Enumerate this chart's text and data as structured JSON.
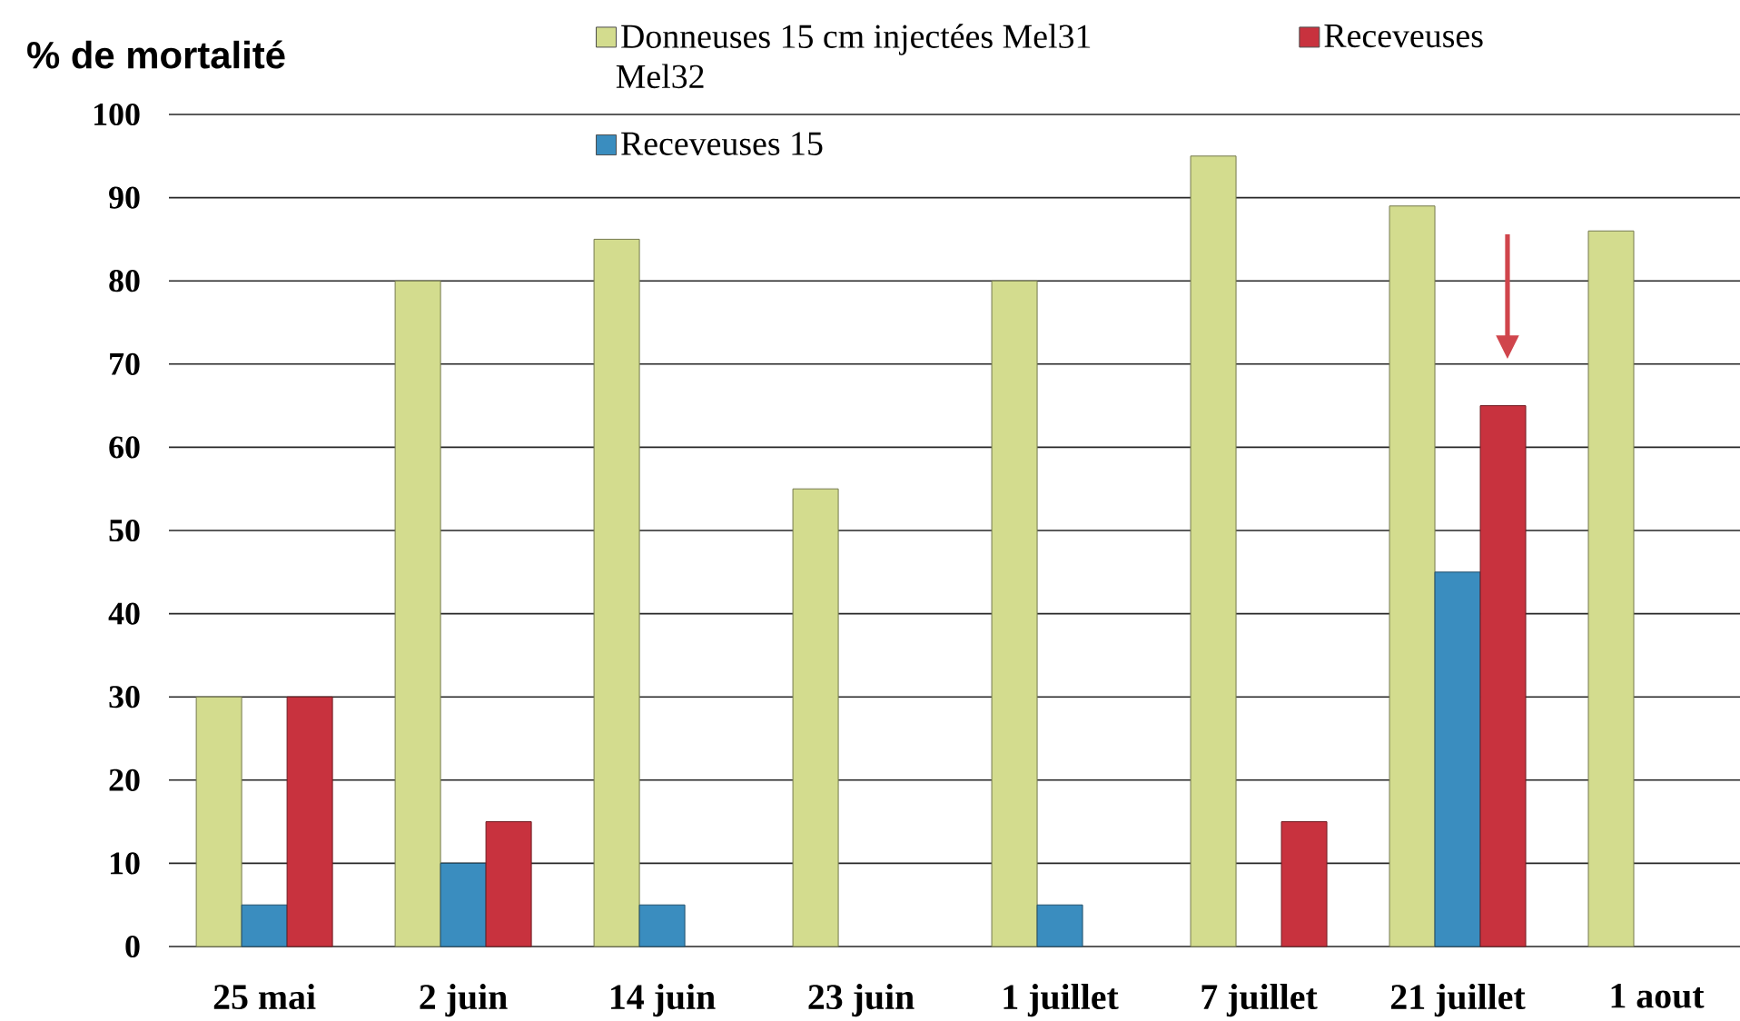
{
  "chart_data": {
    "type": "bar",
    "ylabel": "% de mortalité",
    "categories": [
      "25 mai",
      "2 juin",
      "14 juin",
      "23 juin",
      "1 juillet",
      "7 juillet",
      "21 juillet",
      "1 aout"
    ],
    "series": [
      {
        "name": "Donneuses 15 cm injectées Mel31",
        "color": "#d3dc8e",
        "values": [
          30,
          80,
          85,
          55,
          80,
          95,
          89,
          86
        ]
      },
      {
        "name": "Receveuses 15",
        "color": "#3a8dbf",
        "values": [
          5,
          10,
          5,
          null,
          5,
          null,
          45,
          null
        ]
      },
      {
        "name": "Receveuses",
        "color": "#c8323e",
        "values": [
          30,
          15,
          null,
          null,
          null,
          15,
          65,
          null
        ]
      }
    ],
    "ylim": [
      0,
      100
    ],
    "yticks": [
      0,
      10,
      20,
      30,
      40,
      50,
      60,
      70,
      80,
      90,
      100
    ],
    "grid": "y",
    "legend": "top",
    "annotations": [
      "Mel32"
    ]
  }
}
